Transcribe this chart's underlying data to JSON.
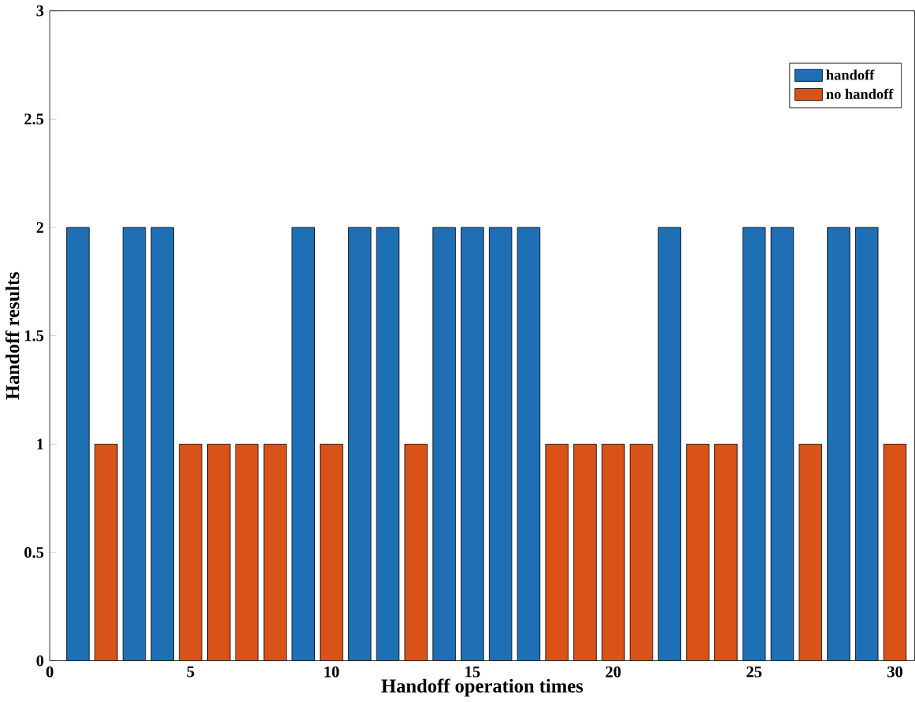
{
  "chart_data": {
    "type": "bar",
    "xlabel": "Handoff operation times",
    "ylabel": "Handoff results",
    "x": [
      1,
      2,
      3,
      4,
      5,
      6,
      7,
      8,
      9,
      10,
      11,
      12,
      13,
      14,
      15,
      16,
      17,
      18,
      19,
      20,
      21,
      22,
      23,
      24,
      25,
      26,
      27,
      28,
      29,
      30
    ],
    "series": [
      {
        "name": "handoff",
        "color": "#1f6fb4",
        "values": [
          2,
          null,
          2,
          2,
          null,
          null,
          null,
          null,
          2,
          null,
          2,
          2,
          null,
          2,
          2,
          2,
          2,
          null,
          null,
          null,
          null,
          2,
          null,
          null,
          2,
          2,
          null,
          2,
          2,
          null
        ]
      },
      {
        "name": "no handoff",
        "color": "#d95319",
        "values": [
          null,
          1,
          null,
          null,
          1,
          1,
          1,
          1,
          null,
          1,
          null,
          null,
          1,
          null,
          null,
          null,
          null,
          1,
          1,
          1,
          1,
          null,
          1,
          1,
          null,
          null,
          1,
          null,
          null,
          1
        ]
      }
    ],
    "xlim": [
      0,
      30.7
    ],
    "ylim": [
      0,
      3
    ],
    "xticks": [
      0,
      5,
      10,
      15,
      20,
      25,
      30
    ],
    "yticks": [
      0,
      0.5,
      1,
      1.5,
      2,
      2.5,
      3
    ],
    "grid": false,
    "legend": "top right"
  }
}
